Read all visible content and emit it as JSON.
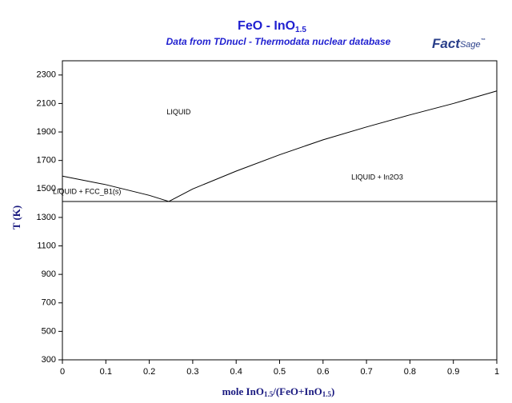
{
  "chart_data": {
    "type": "line",
    "title": [
      "FeO - InO",
      "1.5"
    ],
    "subtitle": "Data from TDnucl - Thermodata nuclear database",
    "logo": [
      "Fact",
      "Sage",
      "™"
    ],
    "ylabel": "T (K)",
    "xlabel": [
      "mole InO",
      "1.5",
      "/(FeO+InO",
      "1.5",
      ")"
    ],
    "xlim": [
      0,
      1
    ],
    "ylim": [
      300,
      2400
    ],
    "xticks": [
      0,
      0.1,
      0.2,
      0.3,
      0.4,
      0.5,
      0.6,
      0.7,
      0.8,
      0.9,
      1
    ],
    "yticks": [
      300,
      500,
      700,
      900,
      1100,
      1300,
      1500,
      1700,
      1900,
      2100,
      2300
    ],
    "series": [
      {
        "color": "#000000",
        "x": [
          0,
          0.1,
          0.2,
          0.245
        ],
        "values": [
          1590,
          1530,
          1455,
          1412
        ]
      },
      {
        "color": "#000000",
        "x": [
          0.245,
          0.3,
          0.4,
          0.5,
          0.6,
          0.7,
          0.8,
          0.9,
          1
        ],
        "values": [
          1412,
          1500,
          1625,
          1740,
          1845,
          1935,
          2020,
          2100,
          2188
        ]
      },
      {
        "color": "#000000",
        "x": [
          0,
          1
        ],
        "values": [
          1412,
          1412
        ]
      }
    ],
    "annotations": [
      {
        "text": "LIQUID",
        "x": 0.24,
        "y": 2036
      },
      {
        "text": "LIQUID + In2O3",
        "x": 0.665,
        "y": 1580
      },
      {
        "text": "LIQUID + FCC_B1(s)",
        "x": -0.022,
        "y": 1478
      }
    ]
  }
}
